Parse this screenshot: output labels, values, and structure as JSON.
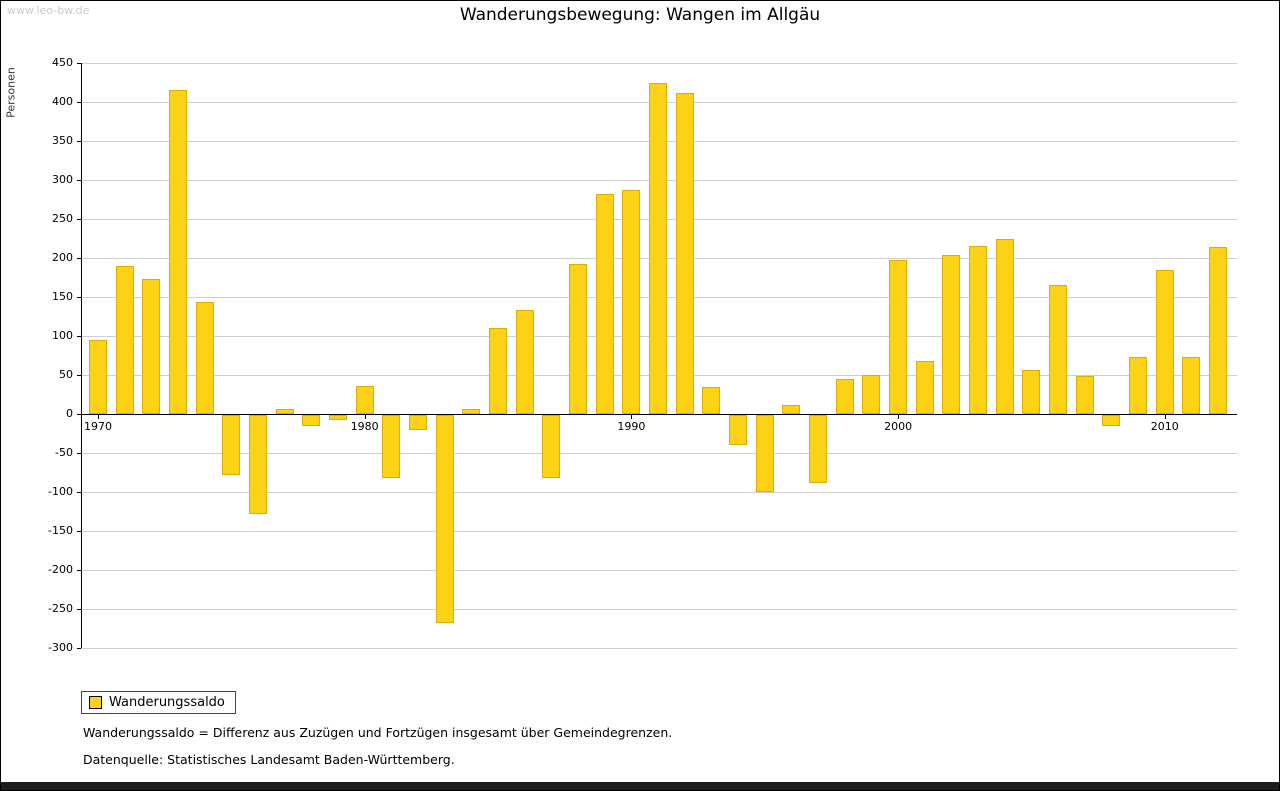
{
  "watermark": "www.leo-bw.de",
  "title": "Wanderungsbewegung: Wangen im Allgäu",
  "y_axis_label": "Personen",
  "legend": {
    "label": "Wanderungssaldo"
  },
  "footnotes": [
    "Wanderungssaldo = Differenz aus Zuzügen und Fortzügen insgesamt über Gemeindegrenzen.",
    "Datenquelle: Statistisches Landesamt Baden-Württemberg."
  ],
  "colors": {
    "bar": "#FCD116",
    "bar_border": "#DBAE0B",
    "grid": "#CFCFCF",
    "axis": "#000000"
  },
  "chart_data": {
    "type": "bar",
    "title": "Wanderungsbewegung: Wangen im Allgäu",
    "xlabel": "",
    "ylabel": "Personen",
    "ylim": [
      -300,
      450
    ],
    "y_tick_step": 50,
    "grid": true,
    "legend_position": "bottom-left",
    "legend": [
      "Wanderungssaldo"
    ],
    "x_ticks": [
      1970,
      1980,
      1990,
      2000,
      2010
    ],
    "categories": [
      1970,
      1971,
      1972,
      1973,
      1974,
      1975,
      1976,
      1977,
      1978,
      1979,
      1980,
      1981,
      1982,
      1983,
      1984,
      1985,
      1986,
      1987,
      1988,
      1989,
      1990,
      1991,
      1992,
      1993,
      1994,
      1995,
      1996,
      1997,
      1998,
      1999,
      2000,
      2001,
      2002,
      2003,
      2004,
      2005,
      2006,
      2007,
      2008,
      2009,
      2010,
      2011,
      2012
    ],
    "values": [
      95,
      190,
      173,
      415,
      144,
      -78,
      -128,
      7,
      -15,
      -8,
      36,
      -82,
      -20,
      -268,
      7,
      110,
      133,
      -82,
      192,
      282,
      287,
      424,
      412,
      35,
      -40,
      -100,
      12,
      -88,
      45,
      50,
      197,
      68,
      204,
      216,
      225,
      57,
      165,
      49,
      -15,
      73,
      184,
      73,
      214
    ]
  }
}
